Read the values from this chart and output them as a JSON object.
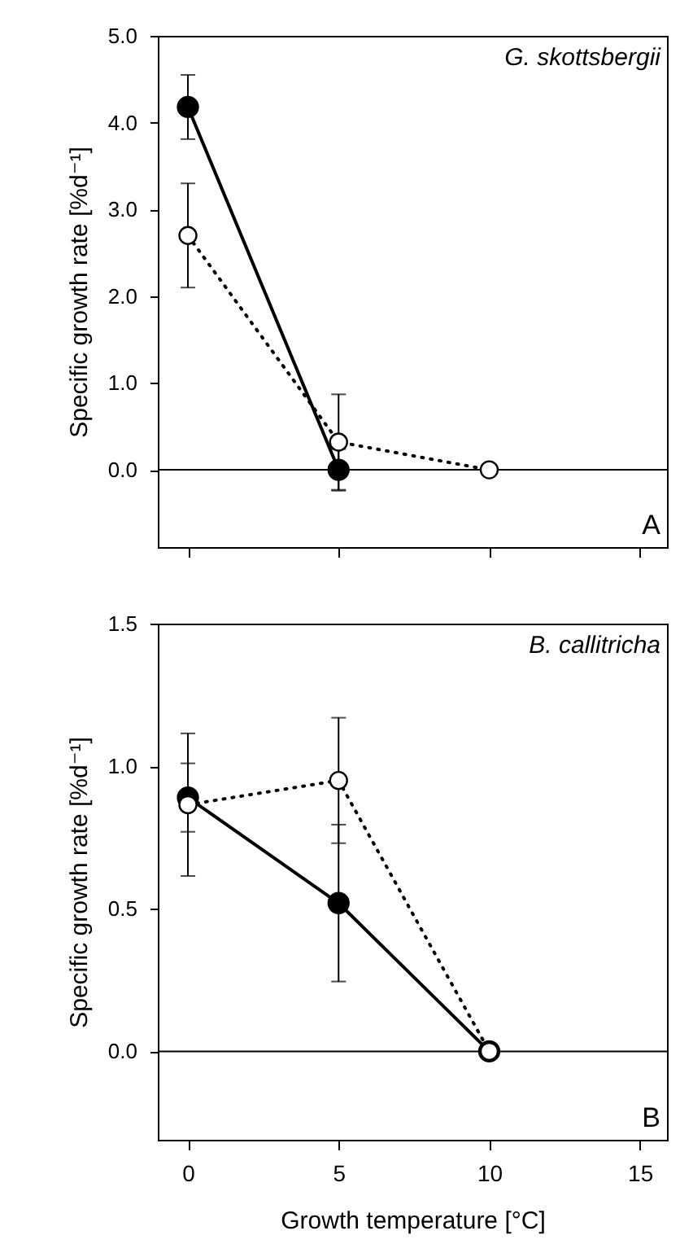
{
  "chart_data": [
    {
      "type": "line",
      "ylabel": "Specific growth rate [%d⁻¹]",
      "annotations": [
        "G. skottsbergii",
        "A"
      ],
      "x": [
        0,
        5,
        10
      ],
      "xlim": [
        -1,
        15.9
      ],
      "xticks": [
        0,
        5,
        10,
        15
      ],
      "ylim": [
        -0.89,
        5.0
      ],
      "yticks": [
        {
          "value": 0,
          "label": "0.0"
        },
        {
          "value": 1,
          "label": "1.0"
        },
        {
          "value": 2,
          "label": "2.0"
        },
        {
          "value": 3,
          "label": "3.0"
        },
        {
          "value": 4,
          "label": "4.0"
        },
        {
          "value": 5,
          "label": "5.0"
        }
      ],
      "tick_labels": "y",
      "grid": false,
      "ref_lines": [
        {
          "axis": "y",
          "value": 0
        }
      ],
      "marker": "circle",
      "series": [
        {
          "color": "#000000",
          "line_style": "solid",
          "values": [
            4.18,
            0.0,
            null
          ],
          "errors": [
            0.37,
            0.24,
            null
          ]
        },
        {
          "color": "#000000",
          "line_style": "dotted",
          "values": [
            2.7,
            0.32,
            0.0
          ],
          "errors": [
            0.6,
            0.55,
            null
          ]
        }
      ]
    },
    {
      "type": "line",
      "xlabel": "Growth temperature [°C]",
      "ylabel": "Specific growth rate [%d⁻¹]",
      "annotations": [
        "B. callitricha",
        "B"
      ],
      "x": [
        0,
        5,
        10
      ],
      "xlim": [
        -1,
        15.9
      ],
      "xticks": [
        0,
        5,
        10,
        15
      ],
      "ylim": [
        -0.31,
        1.5
      ],
      "yticks": [
        {
          "value": 0,
          "label": "0.0"
        },
        {
          "value": 0.5,
          "label": "0.5"
        },
        {
          "value": 1,
          "label": "1.0"
        },
        {
          "value": 1.5,
          "label": "1.5"
        }
      ],
      "grid": false,
      "ref_lines": [
        {
          "axis": "y",
          "value": 0
        }
      ],
      "marker": "circle",
      "series": [
        {
          "color": "#000000",
          "line_style": "solid",
          "values": [
            0.89,
            0.52,
            0.0
          ],
          "errors": [
            0.12,
            0.275,
            null
          ]
        },
        {
          "color": "#000000",
          "line_style": "dotted",
          "values": [
            0.865,
            0.95,
            0.0
          ],
          "errors": [
            0.25,
            0.22,
            null
          ]
        }
      ]
    }
  ]
}
